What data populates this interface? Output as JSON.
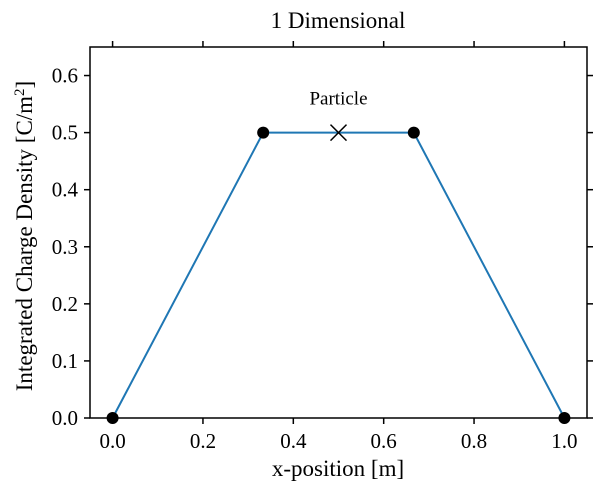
{
  "chart_data": {
    "type": "line",
    "title": "1 Dimensional",
    "xlabel": "x-position [m]",
    "ylabel": "Integrated Charge Density [C/m",
    "ylabel_superscript": "2",
    "ylabel_suffix": "]",
    "xlim": [
      -0.05,
      1.05
    ],
    "ylim": [
      0.0,
      0.65
    ],
    "x_ticks": [
      0.0,
      0.2,
      0.4,
      0.6,
      0.8,
      1.0
    ],
    "x_tick_labels": [
      "0.0",
      "0.2",
      "0.4",
      "0.6",
      "0.8",
      "1.0"
    ],
    "y_ticks": [
      0.0,
      0.1,
      0.2,
      0.3,
      0.4,
      0.5,
      0.6
    ],
    "y_tick_labels": [
      "0.0",
      "0.1",
      "0.2",
      "0.3",
      "0.4",
      "0.5",
      "0.6"
    ],
    "grid": false,
    "series": [
      {
        "color": "#1f77b4",
        "marker_color": "#000000",
        "x": [
          0.0,
          0.3333,
          0.6667,
          1.0
        ],
        "y": [
          0.0,
          0.5,
          0.5,
          0.0
        ]
      }
    ],
    "annotations": [
      {
        "text": "Particle",
        "marker": "x",
        "x": 0.5,
        "y": 0.5
      }
    ]
  }
}
